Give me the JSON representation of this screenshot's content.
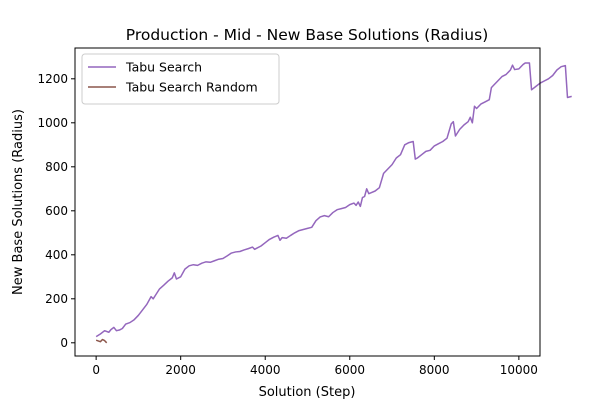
{
  "chart_data": {
    "type": "line",
    "title": "Production - Mid - New Base Solutions (Radius)",
    "xlabel": "Solution (Step)",
    "ylabel": "New Base Solutions (Radius)",
    "xlim": [
      -500,
      10500
    ],
    "ylim": [
      -60,
      1340
    ],
    "xticks": [
      0,
      2000,
      4000,
      6000,
      8000,
      10000
    ],
    "yticks": [
      0,
      200,
      400,
      600,
      800,
      1000,
      1200
    ],
    "grid": false,
    "legend_position": "top-left",
    "series": [
      {
        "name": "Tabu Search",
        "color": "#9467bd",
        "points": [
          [
            0,
            28
          ],
          [
            100,
            40
          ],
          [
            200,
            55
          ],
          [
            300,
            48
          ],
          [
            350,
            60
          ],
          [
            420,
            70
          ],
          [
            480,
            55
          ],
          [
            550,
            58
          ],
          [
            620,
            65
          ],
          [
            700,
            85
          ],
          [
            800,
            92
          ],
          [
            900,
            105
          ],
          [
            1000,
            125
          ],
          [
            1100,
            150
          ],
          [
            1200,
            175
          ],
          [
            1300,
            210
          ],
          [
            1350,
            200
          ],
          [
            1400,
            215
          ],
          [
            1500,
            245
          ],
          [
            1600,
            262
          ],
          [
            1700,
            280
          ],
          [
            1800,
            295
          ],
          [
            1850,
            318
          ],
          [
            1900,
            290
          ],
          [
            2000,
            300
          ],
          [
            2100,
            335
          ],
          [
            2200,
            350
          ],
          [
            2300,
            355
          ],
          [
            2400,
            352
          ],
          [
            2500,
            362
          ],
          [
            2600,
            368
          ],
          [
            2700,
            366
          ],
          [
            2800,
            373
          ],
          [
            2900,
            380
          ],
          [
            3000,
            383
          ],
          [
            3100,
            395
          ],
          [
            3200,
            408
          ],
          [
            3300,
            413
          ],
          [
            3400,
            415
          ],
          [
            3500,
            422
          ],
          [
            3600,
            428
          ],
          [
            3700,
            435
          ],
          [
            3750,
            425
          ],
          [
            3800,
            430
          ],
          [
            3900,
            440
          ],
          [
            4000,
            455
          ],
          [
            4100,
            470
          ],
          [
            4200,
            480
          ],
          [
            4300,
            488
          ],
          [
            4350,
            466
          ],
          [
            4400,
            478
          ],
          [
            4500,
            475
          ],
          [
            4600,
            488
          ],
          [
            4700,
            500
          ],
          [
            4800,
            510
          ],
          [
            4900,
            515
          ],
          [
            5000,
            520
          ],
          [
            5100,
            525
          ],
          [
            5200,
            555
          ],
          [
            5300,
            572
          ],
          [
            5400,
            578
          ],
          [
            5500,
            573
          ],
          [
            5600,
            592
          ],
          [
            5700,
            605
          ],
          [
            5800,
            610
          ],
          [
            5900,
            615
          ],
          [
            6000,
            628
          ],
          [
            6100,
            635
          ],
          [
            6150,
            625
          ],
          [
            6200,
            640
          ],
          [
            6250,
            620
          ],
          [
            6300,
            660
          ],
          [
            6350,
            665
          ],
          [
            6400,
            700
          ],
          [
            6450,
            678
          ],
          [
            6500,
            682
          ],
          [
            6600,
            690
          ],
          [
            6700,
            705
          ],
          [
            6800,
            770
          ],
          [
            6900,
            790
          ],
          [
            7000,
            810
          ],
          [
            7100,
            840
          ],
          [
            7200,
            855
          ],
          [
            7300,
            900
          ],
          [
            7400,
            910
          ],
          [
            7500,
            915
          ],
          [
            7550,
            835
          ],
          [
            7600,
            840
          ],
          [
            7700,
            855
          ],
          [
            7800,
            870
          ],
          [
            7900,
            875
          ],
          [
            8000,
            895
          ],
          [
            8100,
            905
          ],
          [
            8200,
            915
          ],
          [
            8300,
            930
          ],
          [
            8400,
            995
          ],
          [
            8450,
            1005
          ],
          [
            8500,
            940
          ],
          [
            8600,
            970
          ],
          [
            8700,
            990
          ],
          [
            8800,
            1005
          ],
          [
            8850,
            1025
          ],
          [
            8900,
            1000
          ],
          [
            8950,
            1075
          ],
          [
            9000,
            1065
          ],
          [
            9100,
            1085
          ],
          [
            9200,
            1095
          ],
          [
            9300,
            1105
          ],
          [
            9350,
            1160
          ],
          [
            9400,
            1170
          ],
          [
            9500,
            1190
          ],
          [
            9600,
            1210
          ],
          [
            9700,
            1220
          ],
          [
            9800,
            1240
          ],
          [
            9850,
            1262
          ],
          [
            9900,
            1242
          ],
          [
            10000,
            1245
          ],
          [
            10100,
            1265
          ],
          [
            10150,
            1272
          ],
          [
            10250,
            1272
          ],
          [
            10300,
            1150
          ],
          [
            10400,
            1165
          ],
          [
            10500,
            1180
          ],
          [
            10600,
            1190
          ],
          [
            10700,
            1200
          ],
          [
            10800,
            1215
          ],
          [
            10900,
            1240
          ],
          [
            11000,
            1255
          ],
          [
            11100,
            1260
          ],
          [
            11150,
            1115
          ],
          [
            11250,
            1120
          ]
        ]
      },
      {
        "name": "Tabu Search Random",
        "color": "#8c564b",
        "points": [
          [
            0,
            12
          ],
          [
            100,
            5
          ],
          [
            150,
            15
          ],
          [
            200,
            10
          ],
          [
            250,
            0
          ]
        ]
      }
    ]
  }
}
